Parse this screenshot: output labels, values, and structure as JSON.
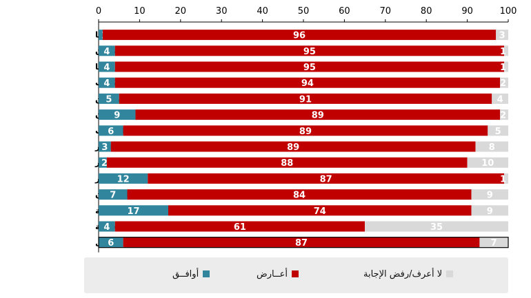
{
  "chart_data": {
    "type": "bar",
    "orientation": "horizontal",
    "stacked": true,
    "categories": [
      "ليبيا",
      "الأردن",
      "موريتانيا",
      "الكويت",
      "فلسطين",
      "لبنان",
      "المغرب",
      "قطر",
      "الجزائر",
      "مصر",
      "السودان",
      "سورية",
      "السعودية",
      "المعدل"
    ],
    "series": [
      {
        "name": "أوافــق",
        "color": "#31859c",
        "values": [
          1,
          4,
          4,
          4,
          5,
          9,
          6,
          3,
          2,
          12,
          7,
          17,
          4,
          6
        ]
      },
      {
        "name": "أعــارض",
        "color": "#c00000",
        "values": [
          96,
          95,
          95,
          94,
          91,
          89,
          89,
          89,
          88,
          87,
          84,
          74,
          61,
          87
        ]
      },
      {
        "name": "لا أعرف/رفض الإجابة",
        "color": "#d9d9d9",
        "values": [
          3,
          1,
          1,
          2,
          4,
          2,
          5,
          8,
          10,
          1,
          9,
          9,
          35,
          7
        ]
      }
    ],
    "xlim": [
      0,
      100
    ],
    "xticks": [
      0,
      10,
      20,
      30,
      40,
      50,
      60,
      70,
      80,
      90,
      100
    ],
    "x_axis_position": "top",
    "legend_position": "bottom",
    "highlighted_category": "المعدل"
  }
}
